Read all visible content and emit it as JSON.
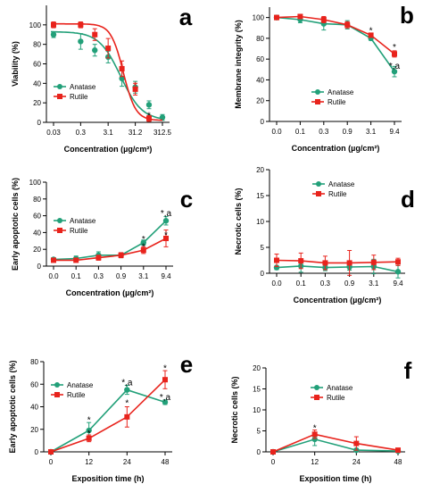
{
  "colors": {
    "anatase": "#22a079",
    "rutile": "#e8231c",
    "axis": "#000000"
  },
  "chart_data": [
    {
      "panel": "a",
      "type": "line",
      "xlabel": "Concentration (µg/cm²)",
      "ylabel": "Viability (%)",
      "categories": [
        "0.03",
        "0.3",
        "3.1",
        "31.2",
        "312.5"
      ],
      "x_scale": "log",
      "x_ticks": [
        0.03,
        0.3,
        3.1,
        31.2,
        312.5
      ],
      "ylim": [
        0,
        120
      ],
      "y_ticks": [
        0,
        20,
        40,
        60,
        80,
        100
      ],
      "legend": "bottom-left",
      "series": [
        {
          "name": "Anatase",
          "color": "#22a079",
          "x": [
            0.03,
            0.3,
            1,
            3.1,
            10,
            31.2,
            100,
            312.5
          ],
          "y": [
            90,
            83,
            74,
            67,
            45,
            36,
            18,
            5
          ],
          "err": [
            3,
            8,
            6,
            6,
            8,
            6,
            4,
            3
          ],
          "fit": {
            "top": 93,
            "bottom": 2,
            "log_ec50": 0.95,
            "hill": 1.1
          }
        },
        {
          "name": "Rutile",
          "color": "#e8231c",
          "x": [
            0.03,
            0.3,
            1,
            3.1,
            10,
            31.2,
            100
          ],
          "y": [
            100,
            100,
            90,
            76,
            55,
            34,
            4
          ],
          "err": [
            3,
            3,
            6,
            10,
            8,
            6,
            3
          ],
          "fit": {
            "top": 101,
            "bottom": 2,
            "log_ec50": 1.05,
            "hill": 1.9
          }
        }
      ],
      "annotations": [
        {
          "text": "*",
          "x": 10,
          "y": 58,
          "color": "#e8231c"
        },
        {
          "text": "*",
          "x": 31.2,
          "y": 39,
          "color": "#e8231c"
        },
        {
          "text": "*",
          "x": 100,
          "y": 8,
          "color": "#000000"
        }
      ]
    },
    {
      "panel": "b",
      "type": "line",
      "xlabel": "Concentration (µg/cm²)",
      "ylabel": "Membrane integrity (%)",
      "categories": [
        "0.0",
        "0.1",
        "0.3",
        "0.9",
        "3.1",
        "9.4"
      ],
      "ylim": [
        0,
        110
      ],
      "y_ticks": [
        0,
        20,
        40,
        60,
        80,
        100
      ],
      "legend": "bottom-right",
      "series": [
        {
          "name": "Anatase",
          "color": "#22a079",
          "values": [
            100,
            98,
            94,
            93,
            80,
            48
          ],
          "err": [
            2,
            3,
            6,
            4,
            2,
            5
          ]
        },
        {
          "name": "Rutile",
          "color": "#e8231c",
          "values": [
            100,
            101,
            98,
            93,
            83,
            65
          ],
          "err": [
            2,
            2,
            3,
            3,
            2,
            3
          ]
        }
      ],
      "annotations": [
        {
          "text": "*",
          "x": 4,
          "y": 88
        },
        {
          "text": "*",
          "x": 5,
          "y": 72
        },
        {
          "text": "*,a",
          "x": 5,
          "y": 54
        }
      ]
    },
    {
      "panel": "c",
      "type": "line",
      "xlabel": "Concentration (µg/cm²)",
      "ylabel": "Early apoptotic cells (%)",
      "categories": [
        "0.0",
        "0.1",
        "0.3",
        "0.9",
        "3.1",
        "9.4"
      ],
      "ylim": [
        0,
        100
      ],
      "y_ticks": [
        0,
        20,
        40,
        60,
        80,
        100
      ],
      "legend": "top-left",
      "series": [
        {
          "name": "Anatase",
          "color": "#22a079",
          "values": [
            8,
            9,
            13,
            13,
            28,
            54
          ],
          "err": [
            2,
            3,
            4,
            3,
            3,
            5
          ]
        },
        {
          "name": "Rutile",
          "color": "#e8231c",
          "values": [
            7,
            7,
            10,
            13,
            19,
            33
          ],
          "err": [
            2,
            2,
            3,
            3,
            4,
            10
          ]
        }
      ],
      "annotations": [
        {
          "text": "*",
          "x": 4,
          "y": 33
        },
        {
          "text": "*",
          "x": 4,
          "y": 24
        },
        {
          "text": "*,a",
          "x": 5,
          "y": 64
        },
        {
          "text": "*",
          "x": 5,
          "y": 38
        }
      ]
    },
    {
      "panel": "d",
      "type": "line",
      "xlabel": "Concentration (µg/cm²)",
      "ylabel": "Necrotic cells (%)",
      "categories": [
        "0.0",
        "0.1",
        "0.3",
        "0.9",
        "3.1",
        "9.4"
      ],
      "ylim": [
        0,
        20
      ],
      "y_ticks": [
        0,
        5,
        10,
        15,
        20
      ],
      "legend": "top-center",
      "series": [
        {
          "name": "Anatase",
          "color": "#22a079",
          "values": [
            1.1,
            1.4,
            1.1,
            1.2,
            1.3,
            0.3
          ],
          "err": [
            0.4,
            1.2,
            0.6,
            0.6,
            1.4,
            1.2
          ]
        },
        {
          "name": "Rutile",
          "color": "#e8231c",
          "values": [
            2.5,
            2.4,
            2.0,
            2.0,
            2.1,
            2.2
          ],
          "err": [
            1.2,
            1.5,
            1.3,
            2.4,
            1.4,
            0.7
          ]
        }
      ]
    },
    {
      "panel": "e",
      "type": "line",
      "xlabel": "Exposition time (h)",
      "ylabel": "Early apoptotic cells (%)",
      "categories": [
        "0",
        "12",
        "24",
        "48"
      ],
      "ylim": [
        0,
        80
      ],
      "y_ticks": [
        0,
        20,
        40,
        60,
        80
      ],
      "legend": "top-left",
      "series": [
        {
          "name": "Anatase",
          "color": "#22a079",
          "values": [
            0,
            19,
            55,
            44
          ],
          "err": [
            0,
            7,
            4,
            2
          ]
        },
        {
          "name": "Rutile",
          "color": "#e8231c",
          "values": [
            0,
            12,
            31,
            64
          ],
          "err": [
            0,
            3,
            9,
            8
          ]
        }
      ],
      "annotations": [
        {
          "text": "*",
          "x": 1,
          "y": 29
        },
        {
          "text": "*",
          "x": 1,
          "y": 17
        },
        {
          "text": "*,a",
          "x": 2,
          "y": 62
        },
        {
          "text": "*",
          "x": 2,
          "y": 44
        },
        {
          "text": "*",
          "x": 3,
          "y": 75
        },
        {
          "text": "*,a",
          "x": 3,
          "y": 49
        }
      ]
    },
    {
      "panel": "f",
      "type": "line",
      "xlabel": "Exposition time (h)",
      "ylabel": "Necrotic cells (%)",
      "categories": [
        "0",
        "12",
        "24",
        "48"
      ],
      "ylim": [
        0,
        20
      ],
      "y_ticks": [
        0,
        5,
        10,
        15,
        20
      ],
      "legend": "top-left",
      "series": [
        {
          "name": "Anatase",
          "color": "#22a079",
          "values": [
            0,
            3,
            0.4,
            0.2
          ],
          "err": [
            0,
            1.5,
            0.4,
            0.2
          ]
        },
        {
          "name": "Rutile",
          "color": "#e8231c",
          "values": [
            0,
            4.2,
            2,
            0.4
          ],
          "err": [
            0,
            1,
            1.6,
            0.3
          ]
        }
      ],
      "annotations": [
        {
          "text": "*",
          "x": 1,
          "y": 5.8
        }
      ]
    }
  ]
}
